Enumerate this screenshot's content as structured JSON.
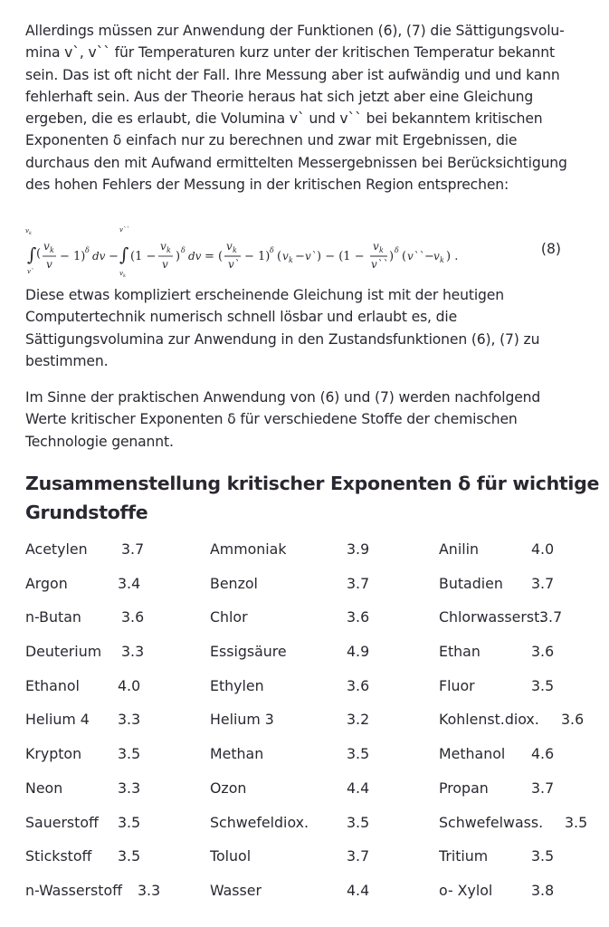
{
  "paragraph1": [
    "Allerdings müssen zur Anwendung der Funktionen (6), (7) die Sättigungsvolu-",
    "mina v`, v`` für Temperaturen kurz unter der kritischen Temperatur bekannt",
    "sein. Das ist oft nicht der Fall. Ihre Messung aber ist aufwändig und und kann",
    "fehlerhaft sein. Aus der Theorie heraus hat sich jetzt aber eine Gleichung",
    "ergeben, die es erlaubt, die Volumina v` und v`` bei bekanntem kritischen",
    "Exponenten δ einfach nur zu berechnen und zwar mit Ergebnissen, die",
    "durchaus den mit Aufwand ermittelten Messergebnissen bei Berücksichtigung",
    "des hohen Fehlers der Messung in der kritischen Region entsprechen:"
  ],
  "equation": {
    "number": "(8)"
  },
  "paragraph2": [
    "Diese etwas kompliziert erscheinende Gleichung ist mit der heutigen",
    "Computertechnik numerisch schnell lösbar und erlaubt es, die",
    "Sättigungsvolumina zur Anwendung in den Zustandsfunktionen (6), (7) zu",
    "bestimmen."
  ],
  "paragraph3": [
    "Im Sinne der praktischen Anwendung von (6) und (7) werden nachfolgend",
    "Werte kritischer Exponenten δ für verschiedene Stoffe der chemischen",
    "Technologie genannt."
  ],
  "heading": [
    "Zusammenstellung kritischer Exponenten δ für wichtige",
    "Grundstoffe"
  ],
  "substances": [
    [
      [
        "Acetylen",
        "3.7"
      ],
      [
        "Ammoniak",
        "3.9"
      ],
      [
        "Anilin",
        "4.0"
      ]
    ],
    [
      [
        "Argon",
        "3.4"
      ],
      [
        "Benzol",
        "3.7"
      ],
      [
        "Butadien",
        "3.7"
      ]
    ],
    [
      [
        "n-Butan",
        "3.6"
      ],
      [
        "Chlor",
        "3.6"
      ],
      [
        "Chlorwasserst.",
        "3.7"
      ]
    ],
    [
      [
        "Deuterium",
        "3.3"
      ],
      [
        "Essigsäure",
        "4.9"
      ],
      [
        "Ethan",
        "3.6"
      ]
    ],
    [
      [
        "Ethanol",
        "4.0"
      ],
      [
        "Ethylen",
        "3.6"
      ],
      [
        "Fluor",
        "3.5"
      ]
    ],
    [
      [
        "Helium 4",
        "3.3"
      ],
      [
        "Helium 3",
        "3.2"
      ],
      [
        "Kohlenst.diox.",
        "3.6"
      ]
    ],
    [
      [
        "Krypton",
        "3.5"
      ],
      [
        "Methan",
        "3.5"
      ],
      [
        "Methanol",
        "4.6"
      ]
    ],
    [
      [
        "Neon",
        "3.3"
      ],
      [
        "Ozon",
        "4.4"
      ],
      [
        "Propan",
        "3.7"
      ]
    ],
    [
      [
        "Sauerstoff",
        "3.5"
      ],
      [
        "Schwefeldiox.",
        "3.5"
      ],
      [
        "Schwefelwass.",
        "3.5"
      ]
    ],
    [
      [
        "Stickstoff",
        "3.5"
      ],
      [
        "Toluol",
        "3.7"
      ],
      [
        "Tritium",
        "3.5"
      ]
    ],
    [
      [
        "n-Wasserstoff",
        "3.3"
      ],
      [
        "Wasser",
        "4.4"
      ],
      [
        "o- Xylol",
        "3.8"
      ]
    ]
  ]
}
